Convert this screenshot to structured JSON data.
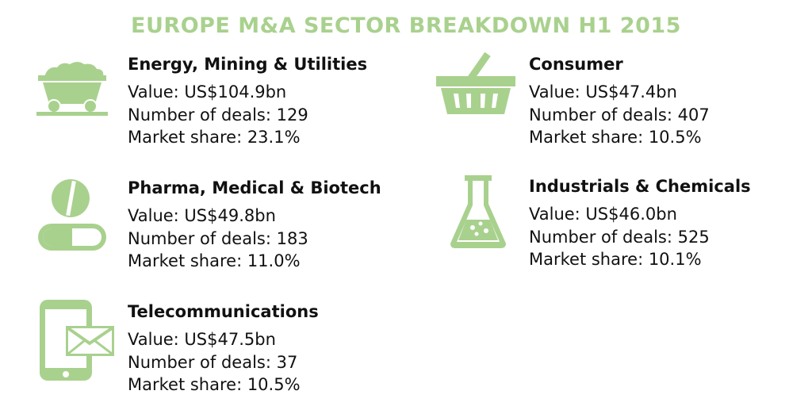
{
  "title": "EUROPE M&A SECTOR BREAKDOWN H1 2015",
  "colors": {
    "accent": "#a9d18e",
    "text": "#111111"
  },
  "sectors": [
    {
      "icon": "mine-cart-icon",
      "name": "Energy, Mining & Utilities",
      "value": "Value: US$104.9bn",
      "deals": "Number of deals: 129",
      "share": "Market share: 23.1%"
    },
    {
      "icon": "shopping-basket-icon",
      "name": "Consumer",
      "value": "Value: US$47.4bn",
      "deals": "Number of deals: 407",
      "share": "Market share: 10.5%"
    },
    {
      "icon": "pills-icon",
      "name": "Pharma, Medical & Biotech",
      "value": "Value: US$49.8bn",
      "deals": "Number of deals: 183",
      "share": "Market share: 11.0%"
    },
    {
      "icon": "flask-icon",
      "name": "Industrials & Chemicals",
      "value": "Value: US$46.0bn",
      "deals": "Number of deals: 525",
      "share": "Market share: 10.1%"
    },
    {
      "icon": "mobile-mail-icon",
      "name": "Telecommunications",
      "value": "Value: US$47.5bn",
      "deals": "Number of deals: 37",
      "share": "Market share: 10.5%"
    }
  ]
}
